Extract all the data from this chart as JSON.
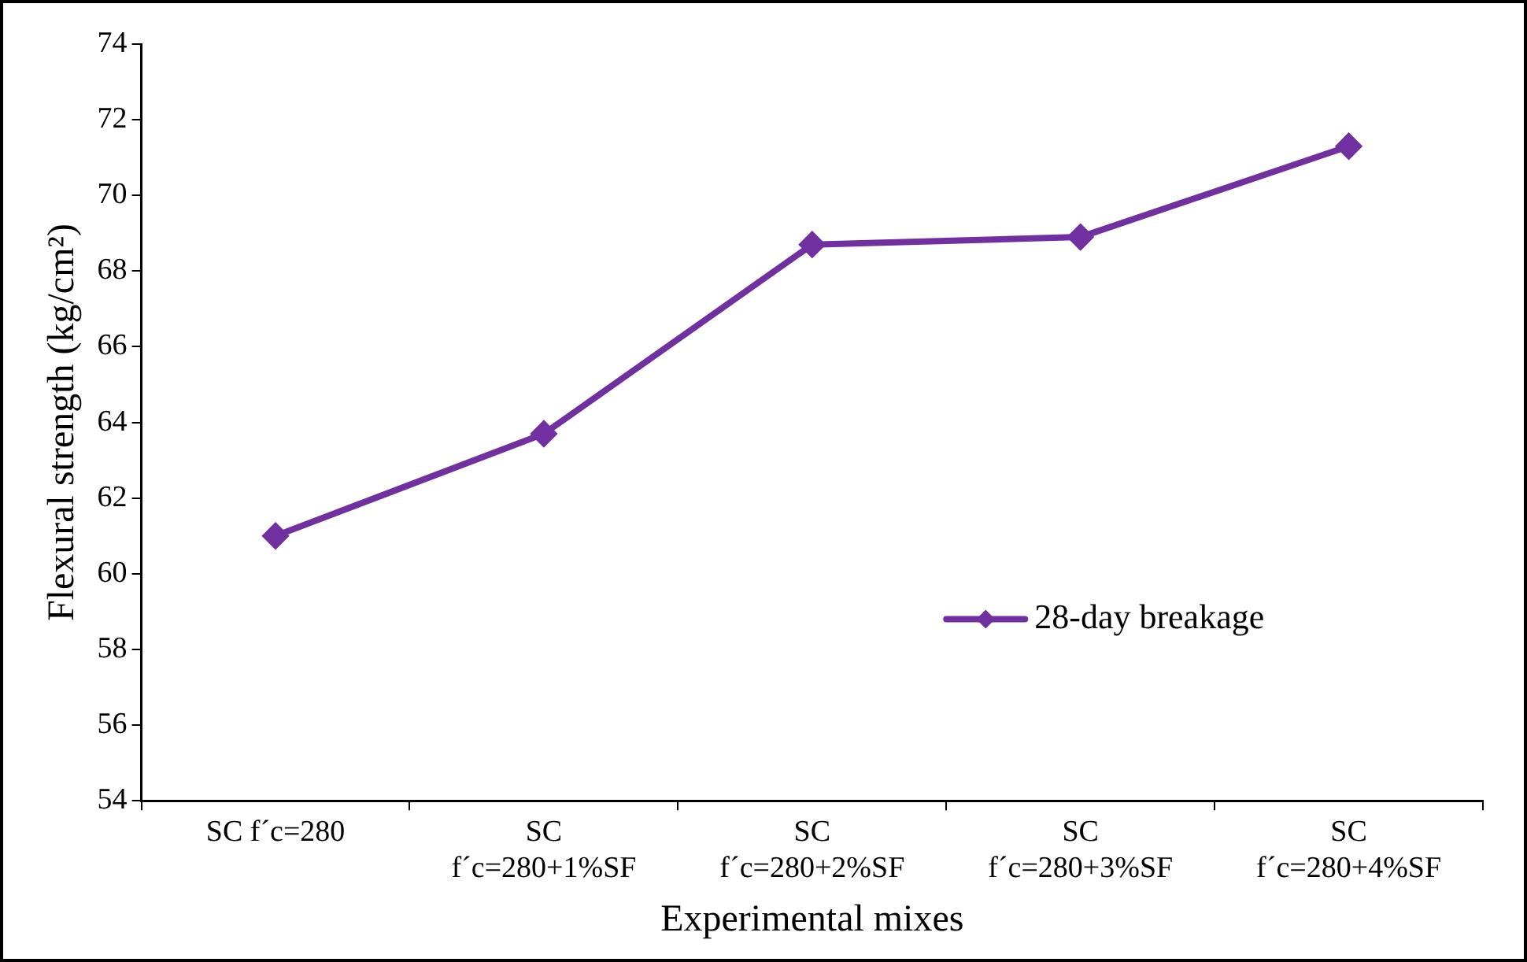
{
  "chart_data": {
    "type": "line",
    "xlabel": "Experimental mixes",
    "ylabel": "Flexural strength (kg/cm²)",
    "categories": [
      "SC f´c=280",
      "SC\nf´c=280+1%SF",
      "SC\nf´c=280+2%SF",
      "SC\nf´c=280+3%SF",
      "SC\nf´c=280+4%SF"
    ],
    "series": [
      {
        "name": "28-day breakage",
        "color": "#7030a0",
        "values": [
          61.0,
          63.7,
          68.7,
          68.9,
          71.3
        ]
      }
    ],
    "ylim": [
      54,
      74
    ],
    "yticks": [
      54,
      56,
      58,
      60,
      62,
      64,
      66,
      68,
      70,
      72,
      74
    ],
    "grid": false,
    "legend": "right",
    "marker": "diamond",
    "line_style": "solid"
  }
}
